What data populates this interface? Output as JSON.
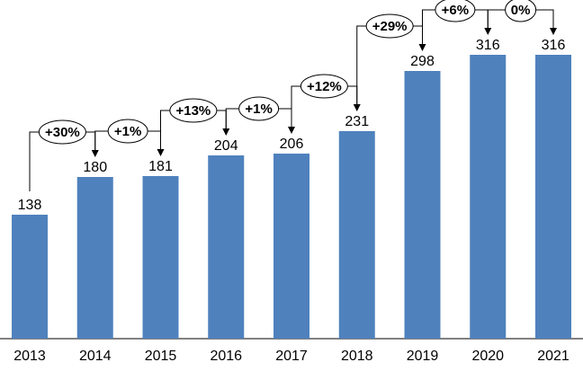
{
  "chart_data": {
    "type": "bar",
    "categories": [
      "2013",
      "2014",
      "2015",
      "2016",
      "2017",
      "2018",
      "2019",
      "2020",
      "2021"
    ],
    "values": [
      138,
      180,
      181,
      204,
      206,
      231,
      298,
      316,
      316
    ],
    "growth_labels": [
      "+30%",
      "+1%",
      "+13%",
      "+1%",
      "+12%",
      "+29%",
      "+6%",
      "0%"
    ],
    "title": "",
    "xlabel": "",
    "ylabel": "",
    "ylim": [
      0,
      380
    ],
    "grid": false,
    "legend": "none",
    "bar_color": "#4f81bd"
  }
}
